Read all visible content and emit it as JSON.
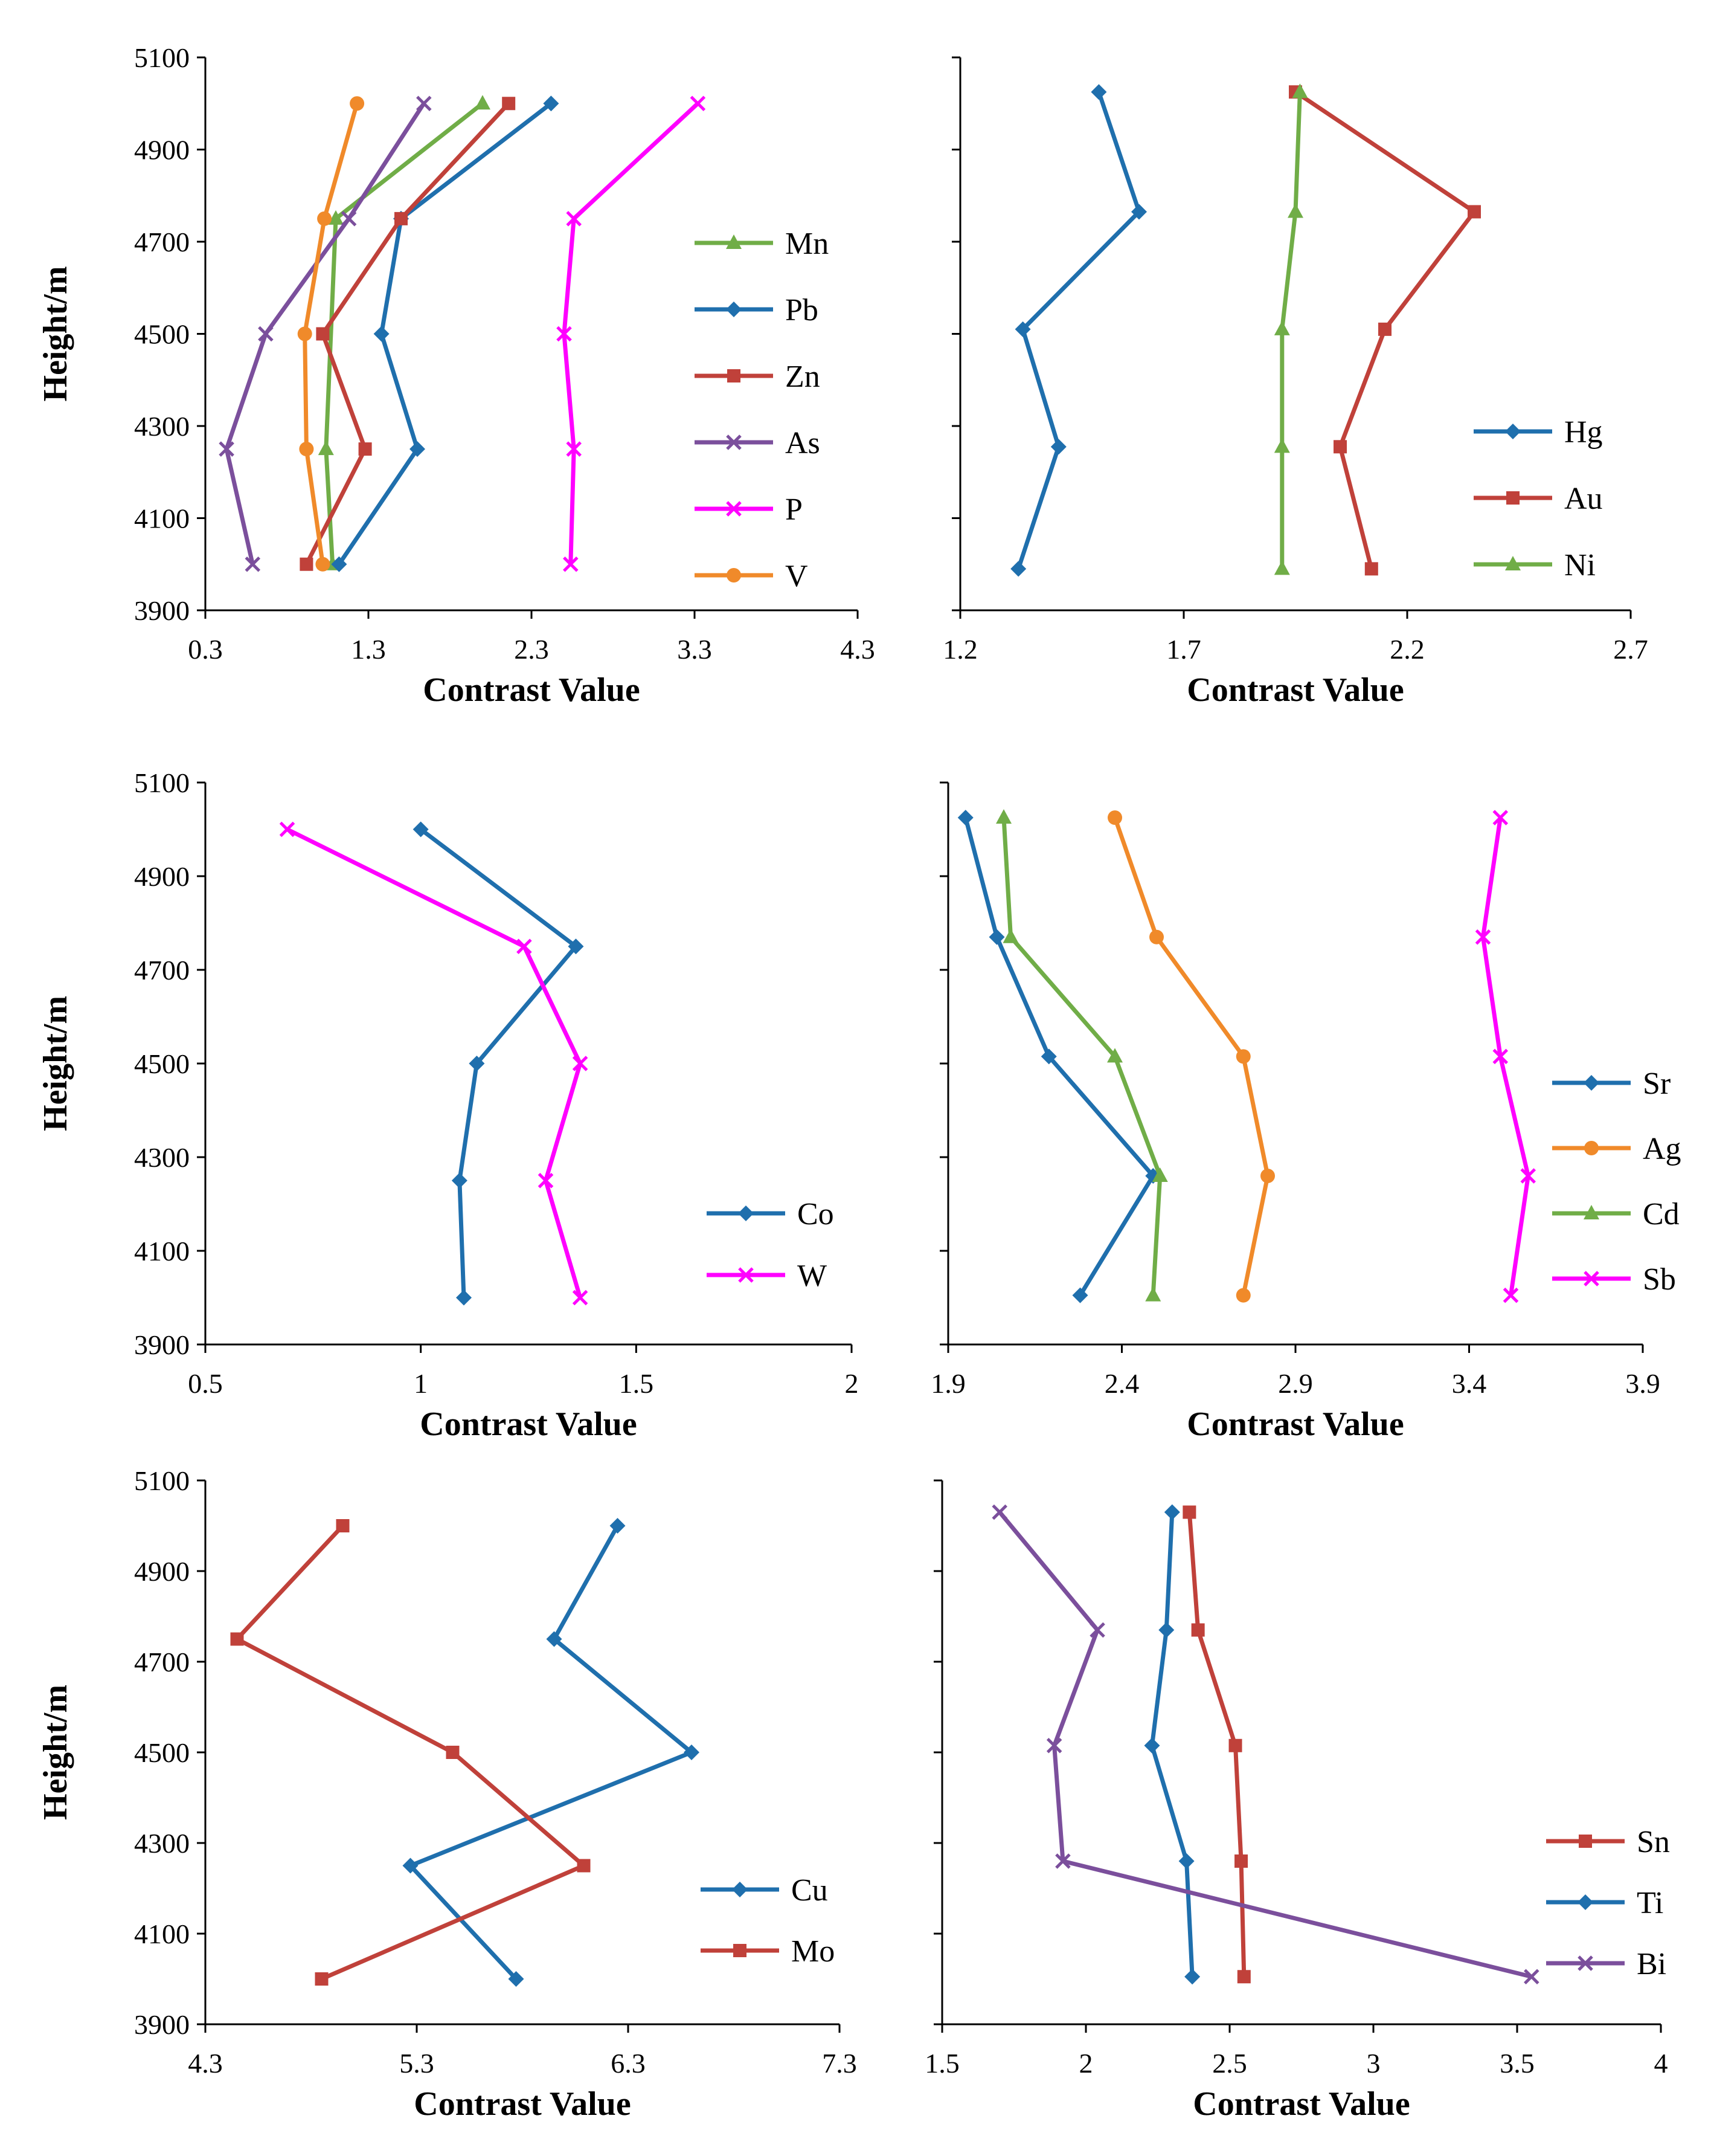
{
  "figure": {
    "ylabel": "Height/m",
    "xlabel": "Contrast Value"
  },
  "chart_data": [
    {
      "type": "line",
      "id": "panel-1",
      "xlim": [
        0.3,
        4.3
      ],
      "xticks": [
        "0.3",
        "1.3",
        "2.3",
        "3.3",
        "4.3"
      ],
      "ylim": [
        3900,
        5100
      ],
      "yticks": [
        "3900",
        "4100",
        "4300",
        "4500",
        "4700",
        "4900",
        "5100"
      ],
      "legend_position": "right",
      "series": [
        {
          "name": "Mn",
          "color": "#70ad47",
          "marker": "triangle",
          "x": [
            1.08,
            1.04,
            1.1,
            2.0
          ],
          "y": [
            4000,
            4250,
            4750,
            5000
          ]
        },
        {
          "name": "Pb",
          "color": "#1f6fad",
          "marker": "diamond",
          "x": [
            1.12,
            1.6,
            1.38,
            1.5,
            2.42
          ],
          "y": [
            4000,
            4250,
            4500,
            4750,
            5000
          ]
        },
        {
          "name": "Zn",
          "color": "#c0413a",
          "marker": "square",
          "x": [
            0.92,
            1.28,
            1.02,
            1.5,
            2.16
          ],
          "y": [
            4000,
            4250,
            4500,
            4750,
            5000
          ]
        },
        {
          "name": "As",
          "color": "#7b4f9c",
          "marker": "x",
          "x": [
            0.59,
            0.43,
            0.67,
            1.18,
            1.64
          ],
          "y": [
            4000,
            4250,
            4500,
            4750,
            5000
          ]
        },
        {
          "name": "P",
          "color": "#ff00ff",
          "marker": "x",
          "x": [
            2.54,
            2.56,
            2.5,
            2.56,
            3.32
          ],
          "y": [
            4000,
            4250,
            4500,
            4750,
            5000
          ]
        },
        {
          "name": "V",
          "color": "#f08a2a",
          "marker": "circle",
          "x": [
            1.02,
            0.92,
            0.91,
            1.03,
            1.23
          ],
          "y": [
            4000,
            4250,
            4500,
            4750,
            5000
          ]
        }
      ]
    },
    {
      "type": "line",
      "id": "panel-2",
      "xlim": [
        1.2,
        2.7
      ],
      "xticks": [
        "1.2",
        "1.7",
        "2.2",
        "2.7"
      ],
      "ylim": [
        3900,
        5100
      ],
      "yticks": [],
      "legend_position": "right",
      "series": [
        {
          "name": "Hg",
          "color": "#1f6fad",
          "marker": "diamond",
          "x": [
            1.33,
            1.42,
            1.34,
            1.6,
            1.51
          ],
          "y": [
            3990,
            4255,
            4510,
            4765,
            5025
          ]
        },
        {
          "name": "Au",
          "color": "#c0413a",
          "marker": "square",
          "x": [
            2.12,
            2.05,
            2.15,
            2.35,
            1.95
          ],
          "y": [
            3990,
            4255,
            4510,
            4765,
            5025
          ]
        },
        {
          "name": "Ni",
          "color": "#70ad47",
          "marker": "triangle",
          "x": [
            1.92,
            1.92,
            1.92,
            1.95,
            1.96
          ],
          "y": [
            3990,
            4255,
            4510,
            4765,
            5025
          ]
        }
      ]
    },
    {
      "type": "line",
      "id": "panel-3",
      "xlim": [
        0.5,
        2
      ],
      "xticks": [
        "0.5",
        "1",
        "1.5",
        "2"
      ],
      "ylim": [
        3900,
        5100
      ],
      "yticks": [
        "3900",
        "4100",
        "4300",
        "4500",
        "4700",
        "4900",
        "5100"
      ],
      "legend_position": "right",
      "series": [
        {
          "name": "Co",
          "color": "#1f6fad",
          "marker": "diamond",
          "x": [
            1.1,
            1.09,
            1.13,
            1.36,
            1.0
          ],
          "y": [
            4000,
            4250,
            4500,
            4750,
            5000
          ]
        },
        {
          "name": "W",
          "color": "#ff00ff",
          "marker": "x",
          "x": [
            1.37,
            1.29,
            1.37,
            1.24,
            0.69
          ],
          "y": [
            4000,
            4250,
            4500,
            4750,
            5000
          ]
        }
      ]
    },
    {
      "type": "line",
      "id": "panel-4",
      "xlim": [
        1.9,
        3.9
      ],
      "xticks": [
        "1.9",
        "2.4",
        "2.9",
        "3.4",
        "3.9"
      ],
      "ylim": [
        3900,
        5100
      ],
      "yticks": [],
      "legend_position": "right",
      "series": [
        {
          "name": "Sr",
          "color": "#1f6fad",
          "marker": "diamond",
          "x": [
            2.28,
            2.49,
            2.19,
            2.04,
            1.95
          ],
          "y": [
            4005,
            4260,
            4515,
            4770,
            5025
          ]
        },
        {
          "name": "Ag",
          "color": "#f08a2a",
          "marker": "circle",
          "x": [
            2.75,
            2.82,
            2.75,
            2.5,
            2.38
          ],
          "y": [
            4005,
            4260,
            4515,
            4770,
            5025
          ]
        },
        {
          "name": "Cd",
          "color": "#70ad47",
          "marker": "triangle",
          "x": [
            2.49,
            2.51,
            2.38,
            2.08,
            2.06
          ],
          "y": [
            4005,
            4260,
            4515,
            4770,
            5025
          ]
        },
        {
          "name": "Sb",
          "color": "#ff00ff",
          "marker": "x",
          "x": [
            3.52,
            3.57,
            3.49,
            3.44,
            3.49
          ],
          "y": [
            4005,
            4260,
            4515,
            4770,
            5025
          ]
        }
      ]
    },
    {
      "type": "line",
      "id": "panel-5",
      "xlim": [
        4.3,
        7.3
      ],
      "xticks": [
        "4.3",
        "5.3",
        "6.3",
        "7.3"
      ],
      "ylim": [
        3900,
        5100
      ],
      "yticks": [
        "3900",
        "4100",
        "4300",
        "4500",
        "4700",
        "4900",
        "5100"
      ],
      "legend_position": "right",
      "series": [
        {
          "name": "Cu",
          "color": "#1f6fad",
          "marker": "diamond",
          "x": [
            5.77,
            5.27,
            6.6,
            5.95,
            6.25
          ],
          "y": [
            4000,
            4250,
            4500,
            4750,
            5000
          ]
        },
        {
          "name": "Mo",
          "color": "#c0413a",
          "marker": "square",
          "x": [
            4.85,
            6.09,
            5.47,
            4.45,
            4.95
          ],
          "y": [
            4000,
            4250,
            4500,
            4750,
            5000
          ]
        }
      ]
    },
    {
      "type": "line",
      "id": "panel-6",
      "xlim": [
        1.5,
        4
      ],
      "xticks": [
        "1.5",
        "2",
        "2.5",
        "3",
        "3.5",
        "4"
      ],
      "ylim": [
        3900,
        5100
      ],
      "yticks": [],
      "legend_position": "right",
      "series": [
        {
          "name": "Sn",
          "color": "#c0413a",
          "marker": "square",
          "x": [
            2.55,
            2.54,
            2.52,
            2.39,
            2.36
          ],
          "y": [
            4005,
            4260,
            4515,
            4770,
            5030
          ]
        },
        {
          "name": "Ti",
          "color": "#1f6fad",
          "marker": "diamond",
          "x": [
            2.37,
            2.35,
            2.23,
            2.28,
            2.3
          ],
          "y": [
            4005,
            4260,
            4515,
            4770,
            5030
          ]
        },
        {
          "name": "Bi",
          "color": "#7b4f9c",
          "marker": "x",
          "x": [
            3.55,
            1.92,
            1.89,
            2.04,
            1.7
          ],
          "y": [
            4005,
            4260,
            4515,
            4770,
            5030
          ]
        }
      ]
    }
  ]
}
